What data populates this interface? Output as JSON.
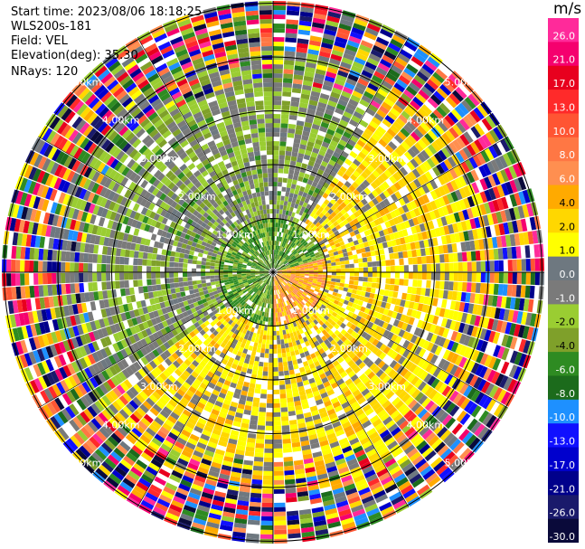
{
  "info": {
    "start_time": "Start time: 2023/08/06 18:18:25",
    "instrument": "WLS200s-181",
    "field": "Field: VEL",
    "elevation": "Elevation(deg): 35.30",
    "nrays": "NRays: 120"
  },
  "colorbar": {
    "unit": "m/s",
    "labels": [
      "26.0",
      "21.0",
      "17.0",
      "13.0",
      "10.0",
      "8.0",
      "6.0",
      "4.0",
      "2.0",
      "1.0",
      "0.0",
      "-1.0",
      "-2.0",
      "-4.0",
      "-6.0",
      "-8.0",
      "-10.0",
      "-13.0",
      "-17.0",
      "-21.0",
      "-26.0",
      "-30.0"
    ],
    "colors": [
      "#ff2a9a",
      "#f5006e",
      "#e8001e",
      "#ff2a2a",
      "#ff5533",
      "#ff7744",
      "#ff8f50",
      "#ffaa00",
      "#ffd700",
      "#ffff00",
      "#6e7880",
      "#7a7a7a",
      "#9acd32",
      "#7fa02a",
      "#2e8b22",
      "#1c6b1c",
      "#1e90ff",
      "#1010ff",
      "#0000cd",
      "#00008b",
      "#1a1a6b",
      "#0a0a3a"
    ]
  },
  "chart_data": {
    "type": "heatmap",
    "projection": "polar-ppi",
    "field": "VEL",
    "units": "m/s",
    "nrays": 120,
    "elevation_deg": 35.3,
    "range_ring_labels": [
      "1.00km",
      "2.00km",
      "3.00km",
      "4.00km",
      "5.00km"
    ],
    "range_rings_km": [
      1,
      2,
      3,
      4,
      5
    ],
    "color_scale_min": -30.0,
    "color_scale_max": 26.0,
    "summary_bands": [
      {
        "range_km": [
          0,
          1
        ],
        "dominant": "green (-2 to -8 m/s) to the west, orange/yellow (2 to 8 m/s) to the east"
      },
      {
        "range_km": [
          1,
          3
        ],
        "dominant": "olive/grey (-1 to -4 m/s) in north and west, yellow (2 to 4 m/s) in south and east"
      },
      {
        "range_km": [
          3,
          5
        ],
        "dominant": "noisy mixed velocities across full scale"
      }
    ]
  }
}
